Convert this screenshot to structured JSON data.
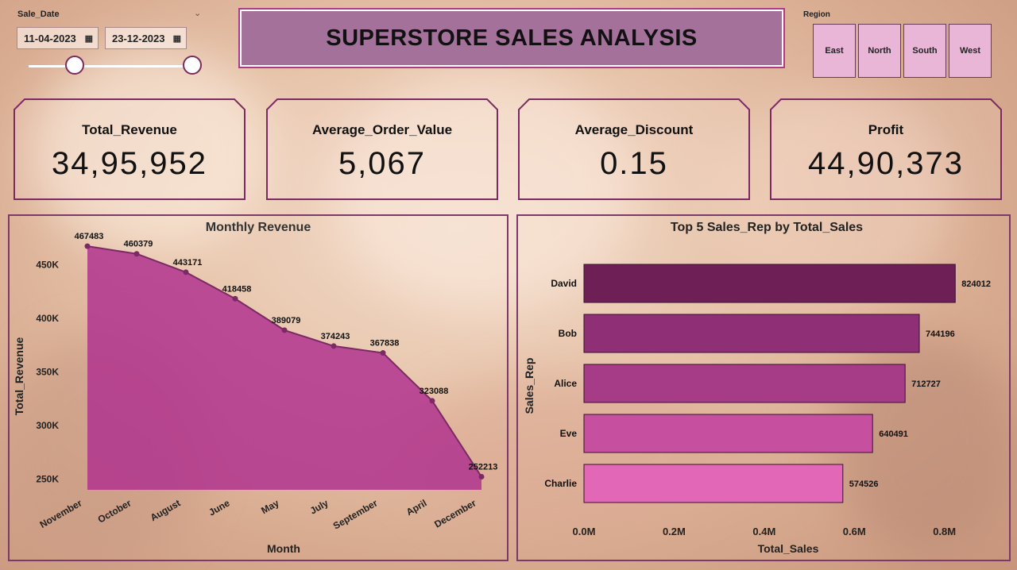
{
  "slicer": {
    "title": "Sale_Date",
    "start_date": "11-04-2023",
    "end_date": "23-12-2023"
  },
  "header": {
    "title": "SUPERSTORE SALES ANALYSIS"
  },
  "region": {
    "title": "Region",
    "options": [
      "East",
      "North",
      "South",
      "West"
    ]
  },
  "kpis": [
    {
      "label": "Total_Revenue",
      "value": "34,95,952"
    },
    {
      "label": "Average_Order_Value",
      "value": "5,067"
    },
    {
      "label": "Average_Discount",
      "value": "0.15"
    },
    {
      "label": "Profit",
      "value": "44,90,373"
    }
  ],
  "colors": {
    "accent": "#7b2a64",
    "area_fill": "#b0348e",
    "bar_colors": [
      "#6e1f56",
      "#8f2f76",
      "#a63b87",
      "#c64f9f",
      "#e268b7"
    ]
  },
  "chart_data": [
    {
      "type": "area",
      "title": "Monthly Revenue",
      "xlabel": "Month",
      "ylabel": "Total_Revenue",
      "categories": [
        "November",
        "October",
        "August",
        "June",
        "May",
        "July",
        "September",
        "April",
        "December"
      ],
      "values": [
        467483,
        460379,
        443171,
        418458,
        389079,
        374243,
        367838,
        323088,
        252213
      ],
      "data_labels": [
        "467483",
        "460379",
        "443171",
        "418458",
        "389079",
        "374243",
        "367838",
        "323088",
        "252213"
      ],
      "y_ticks": [
        {
          "value": 250000,
          "label": "250K"
        },
        {
          "value": 300000,
          "label": "300K"
        },
        {
          "value": 350000,
          "label": "350K"
        },
        {
          "value": 400000,
          "label": "400K"
        },
        {
          "value": 450000,
          "label": "450K"
        }
      ],
      "ylim": [
        240000,
        475000
      ],
      "grid": false
    },
    {
      "type": "bar",
      "orientation": "horizontal",
      "title": "Top 5 Sales_Rep by Total_Sales",
      "xlabel": "Total_Sales",
      "ylabel": "Sales_Rep",
      "categories": [
        "David",
        "Bob",
        "Alice",
        "Eve",
        "Charlie"
      ],
      "values": [
        824012,
        744196,
        712727,
        640491,
        574526
      ],
      "data_labels": [
        "824012",
        "744196",
        "712727",
        "640491",
        "574526"
      ],
      "x_ticks": [
        {
          "value": 0,
          "label": "0.0M"
        },
        {
          "value": 200000,
          "label": "0.2M"
        },
        {
          "value": 400000,
          "label": "0.4M"
        },
        {
          "value": 600000,
          "label": "0.6M"
        },
        {
          "value": 800000,
          "label": "0.8M"
        }
      ],
      "xlim": [
        0,
        820000
      ],
      "grid": false
    }
  ]
}
